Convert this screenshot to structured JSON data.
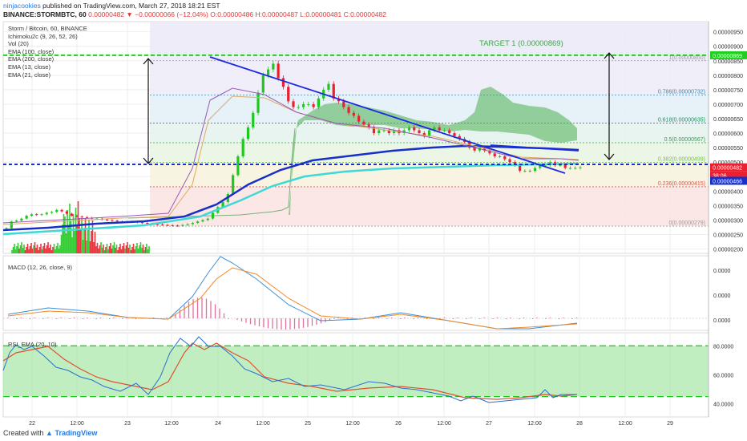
{
  "header": {
    "author": "ninjacookies",
    "published_text": "published on TradingView.com, March 27, 2018 18:21 EST",
    "symbol": "BINANCE:STORMBTC, 60",
    "ohlc_text": "0.00000482 ▼ −0.00000066 (−12.04%) O:0.00000486 H:0.00000487 L:0.00000481 C:0.00000482"
  },
  "price_legend": [
    "Storm / Bitcoin, 60, BINANCE",
    "Ichimoku2c (9, 26, 52, 26)",
    "Vol (20)",
    "EMA (100, close)",
    "EMA (200, close)",
    "EMA (13, close)",
    "EMA (21, close)"
  ],
  "macd_legend": "MACD (12, 26, close, 9)",
  "rsi_legend": "RSI_EMA (20, 10)",
  "footer": {
    "created_with": "Created with",
    "brand": "TradingView"
  },
  "colors": {
    "up": "#1fc81f",
    "down": "#e8202f",
    "ema200": "#1730c8",
    "ema100": "#3fd8d8",
    "cloud": "#4caf50",
    "target": "#22cc22",
    "blue_dash": "#1730c8"
  },
  "chart_data": [
    {
      "type": "candlestick",
      "title": "Storm / Bitcoin, 60, BINANCE",
      "x_ticks": [
        "22",
        "12:00",
        "23",
        "12:00",
        "24",
        "12:00",
        "25",
        "12:00",
        "26",
        "12:00",
        "27",
        "12:00",
        "28",
        "12:00",
        "29"
      ],
      "price_axis": [
        "0.00000950",
        "0.00000900",
        "0.00000850",
        "0.00000800",
        "0.00000750",
        "0.00000700",
        "0.00000650",
        "0.00000600",
        "0.00000550",
        "0.00000500",
        "0.00000450",
        "0.00000400",
        "0.00000350",
        "0.00000300",
        "0.00000250",
        "0.00000200"
      ],
      "ylim": [
        1.85e-06,
        9.85e-06
      ],
      "last_price_label": "0.00000482",
      "countdown_label": "38:06",
      "ema200_label": "0.00000466",
      "target_price_label": "0.00000869",
      "target_label": "TARGET 1  (0.00000869)",
      "fib_levels": [
        {
          "label": "0(0.00000279)",
          "price": 2.79e-06,
          "color": "#999999"
        },
        {
          "label": "0.236(0.00000415)",
          "price": 4.15e-06,
          "color": "#e05050"
        },
        {
          "label": "0.382(0.00000499)",
          "price": 4.99e-06,
          "color": "#7ac04a"
        },
        {
          "label": "0.5(0.00000567)",
          "price": 5.67e-06,
          "color": "#2aa84a"
        },
        {
          "label": "0.618(0.00000635)",
          "price": 6.35e-06,
          "color": "#1a9a5a"
        },
        {
          "label": "0.786(0.00000732)",
          "price": 7.32e-06,
          "color": "#3a8ab0"
        },
        {
          "label": "1(0.00000850)",
          "price": 8.5e-06,
          "color": "#9a9a9a"
        }
      ],
      "close_series_approx": [
        2.72e-06,
        2.95e-06,
        2.98e-06,
        3.05e-06,
        3.15e-06,
        3.2e-06,
        3.18e-06,
        3.2e-06,
        3.25e-06,
        3.28e-06,
        3.35e-06,
        3.3e-06,
        3.22e-06,
        3.15e-06,
        3.12e-06,
        3.1e-06,
        3.08e-06,
        3.05e-06,
        3.05e-06,
        3.02e-06,
        3e-06,
        2.98e-06,
        2.95e-06,
        2.94e-06,
        2.93e-06,
        2.95e-06,
        2.92e-06,
        2.9e-06,
        2.88e-06,
        2.86e-06,
        2.85e-06,
        2.83e-06,
        2.82e-06,
        2.81e-06,
        2.8e-06,
        2.83e-06,
        2.86e-06,
        2.9e-06,
        2.95e-06,
        3e-06,
        3.05e-06,
        3.25e-06,
        3.45e-06,
        3.62e-06,
        3.9e-06,
        4.55e-06,
        5.2e-06,
        5.8e-06,
        6.2e-06,
        6.7e-06,
        7.4e-06,
        8e-06,
        8.2e-06,
        8.4e-06,
        7.9e-06,
        7.6e-06,
        7.1e-06,
        6.9e-06,
        6.9e-06,
        7e-06,
        7e-06,
        6.9e-06,
        7.2e-06,
        7.5e-06,
        7.7e-06,
        7.2e-06,
        7.1e-06,
        6.9e-06,
        6.7e-06,
        6.6e-06,
        6.4e-06,
        6.3e-06,
        6.2e-06,
        6e-06,
        6.1e-06,
        6.1e-06,
        6e-06,
        6.1e-06,
        6e-06,
        6.1e-06,
        6.2e-06,
        6.1e-06,
        6e-06,
        5.9e-06,
        6.1e-06,
        6.2e-06,
        6.1e-06,
        6.1e-06,
        6e-06,
        5.9e-06,
        5.8e-06,
        5.7e-06,
        5.5e-06,
        5.4e-06,
        5.5e-06,
        5.4e-06,
        5.3e-06,
        5.2e-06,
        5.2e-06,
        5.1e-06,
        5e-06,
        4.9e-06,
        4.7e-06,
        4.7e-06,
        4.7e-06,
        4.8e-06,
        4.9e-06,
        4.9e-06,
        5e-06,
        4.9e-06,
        4.9e-06,
        4.8e-06,
        4.8e-06,
        4.8e-06,
        4.82e-06
      ]
    },
    {
      "type": "line",
      "title": "MACD (12, 26, close, 9)",
      "y_ticks": [
        "0.0000",
        "0.0000",
        "0.0000"
      ]
    },
    {
      "type": "line",
      "title": "RSI_EMA (20, 10)",
      "y_ticks": [
        "80.0000",
        "60.0000",
        "40.0000"
      ],
      "ylim": [
        31,
        89
      ],
      "levels": [
        80,
        45
      ]
    }
  ]
}
